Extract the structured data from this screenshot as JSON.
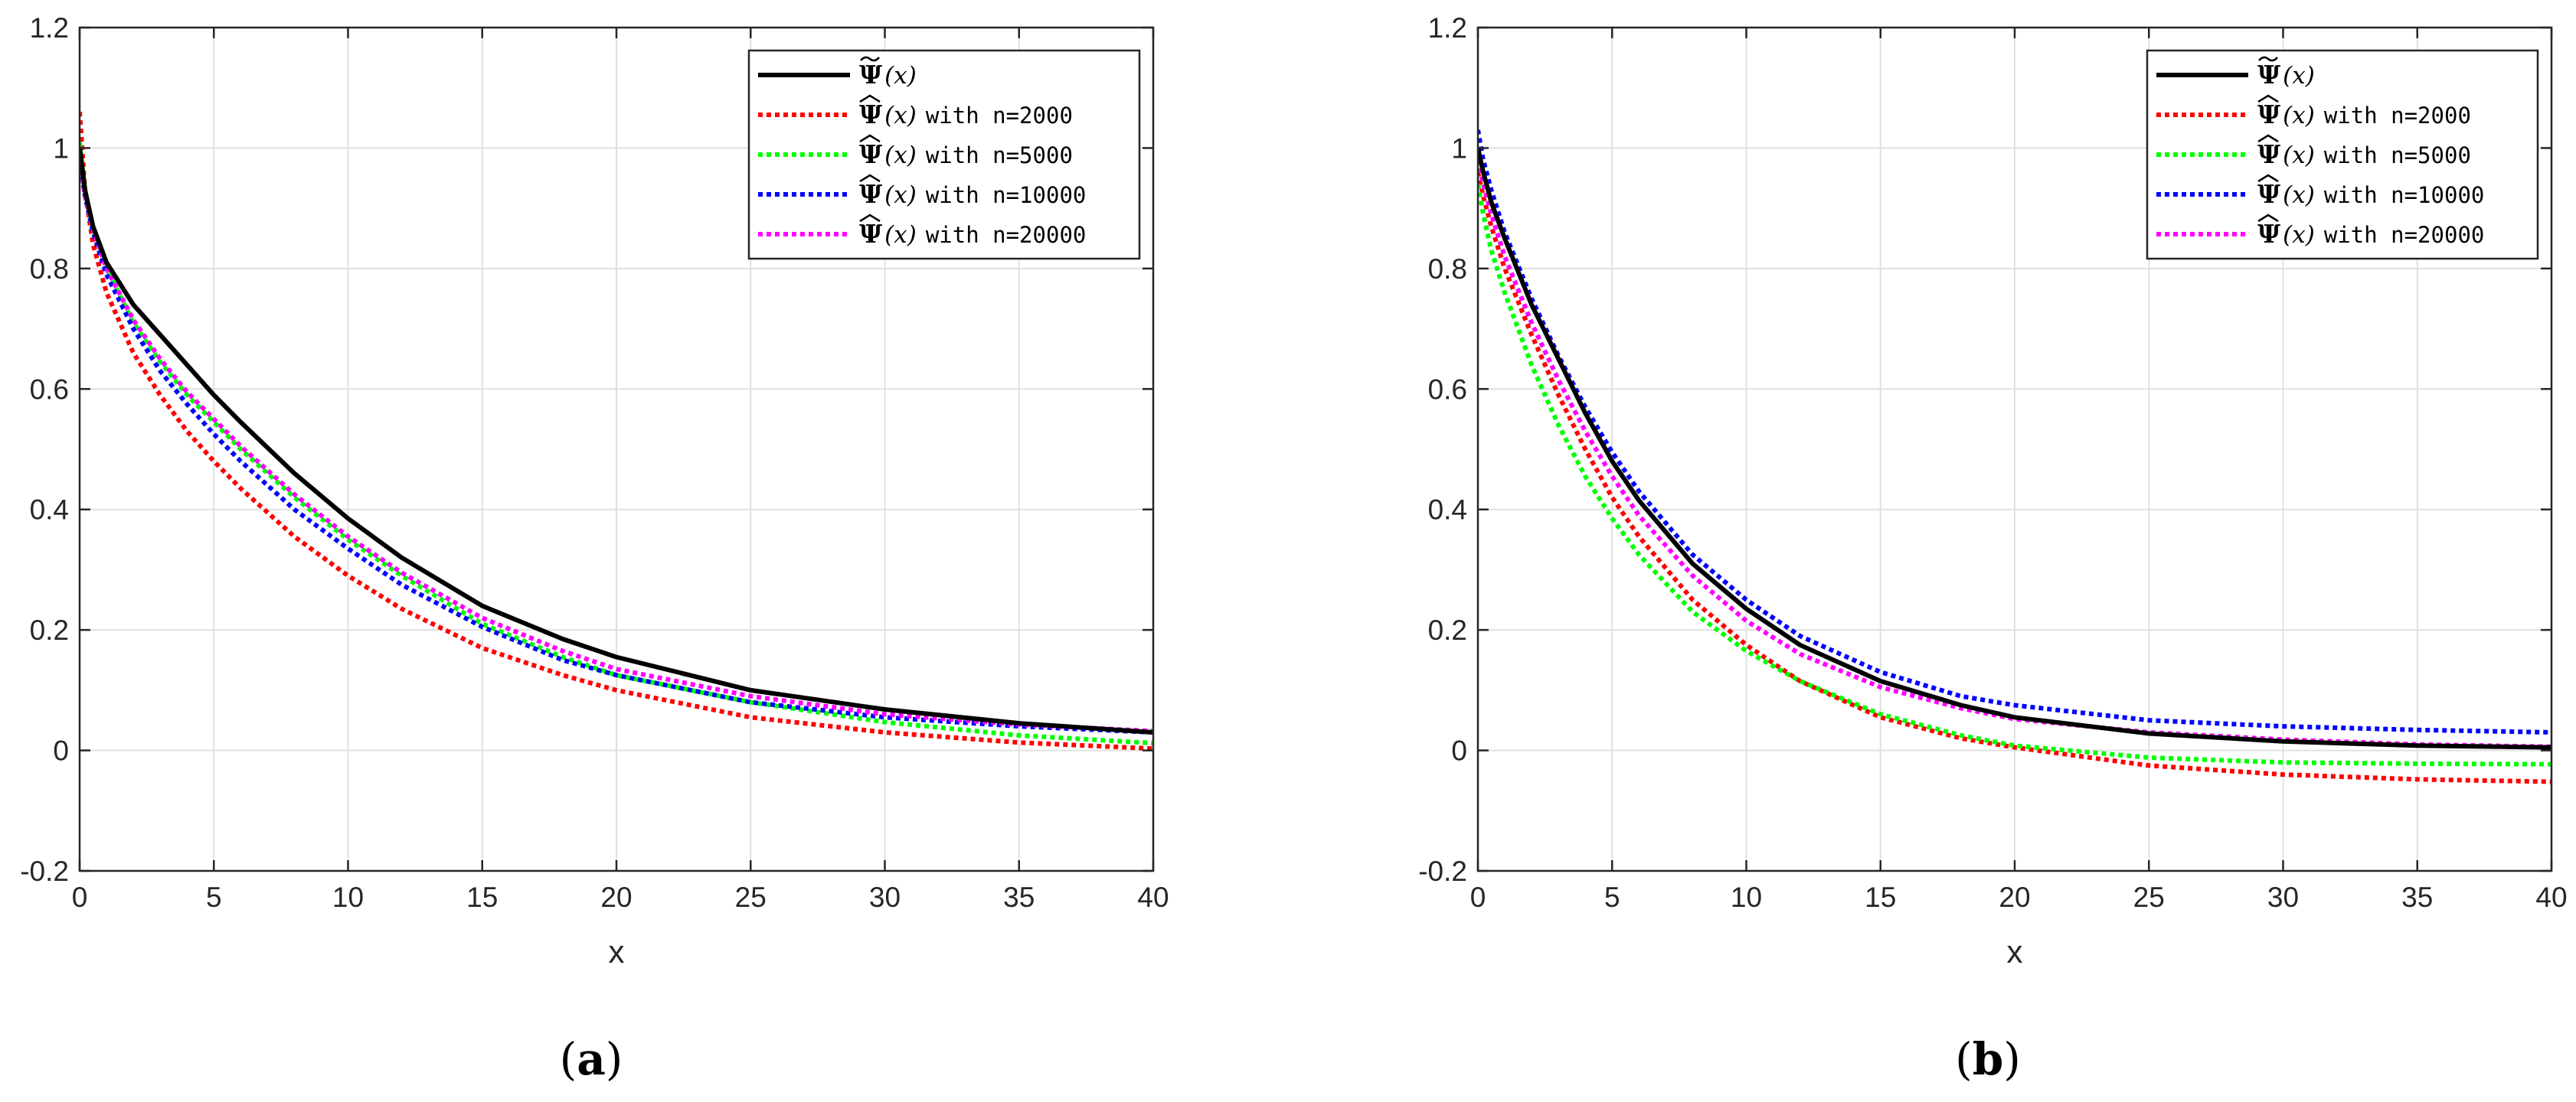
{
  "panel_labels": [
    {
      "open": "(",
      "letter": "a",
      "close": ")"
    },
    {
      "open": "(",
      "letter": "b",
      "close": ")"
    }
  ],
  "chart_data": [
    {
      "type": "line",
      "panel": "a",
      "xlabel": "x",
      "ylabel": "",
      "xlim": [
        0,
        40
      ],
      "ylim": [
        -0.2,
        1.2
      ],
      "xticks": [
        0,
        5,
        10,
        15,
        20,
        25,
        30,
        35,
        40
      ],
      "yticks": [
        -0.2,
        0,
        0.2,
        0.4,
        0.6,
        0.8,
        1,
        1.2
      ],
      "xtick_labels": [
        "0",
        "5",
        "10",
        "15",
        "20",
        "25",
        "30",
        "35",
        "40"
      ],
      "ytick_labels": [
        "-0.2",
        "0",
        "0.2",
        "0.4",
        "0.6",
        "0.8",
        "1",
        "1.2"
      ],
      "grid": true,
      "legend_position": "top-right",
      "x": [
        0,
        0.2,
        0.5,
        1,
        2,
        3,
        4,
        5,
        6,
        8,
        10,
        12,
        15,
        18,
        20,
        25,
        30,
        35,
        40
      ],
      "series": [
        {
          "name": "Ψ̃(x)",
          "symbol": "Ψ",
          "accent": "tilde",
          "suffix": "",
          "color": "#000000",
          "style": "solid",
          "values": [
            1.0,
            0.93,
            0.87,
            0.81,
            0.74,
            0.69,
            0.64,
            0.59,
            0.545,
            0.46,
            0.385,
            0.32,
            0.24,
            0.185,
            0.155,
            0.1,
            0.068,
            0.045,
            0.03
          ]
        },
        {
          "name": "Ψ̂(x) with n=2000",
          "symbol": "Ψ",
          "accent": "hat",
          "suffix": "with n=2000",
          "color": "#ff0000",
          "style": "dotted",
          "values": [
            1.06,
            0.93,
            0.84,
            0.76,
            0.66,
            0.59,
            0.53,
            0.48,
            0.435,
            0.355,
            0.29,
            0.235,
            0.17,
            0.125,
            0.1,
            0.055,
            0.03,
            0.013,
            0.003
          ]
        },
        {
          "name": "Ψ̂(x) with n=5000",
          "symbol": "Ψ",
          "accent": "hat",
          "suffix": "with n=5000",
          "color": "#00ff00",
          "style": "dotted",
          "values": [
            1.01,
            0.93,
            0.865,
            0.8,
            0.71,
            0.645,
            0.59,
            0.545,
            0.5,
            0.42,
            0.35,
            0.29,
            0.21,
            0.155,
            0.125,
            0.08,
            0.047,
            0.025,
            0.012
          ]
        },
        {
          "name": "Ψ̂(x) with n=10000",
          "symbol": "Ψ",
          "accent": "hat",
          "suffix": "with n=10000",
          "color": "#0000ff",
          "style": "dotted",
          "values": [
            0.98,
            0.92,
            0.86,
            0.79,
            0.7,
            0.63,
            0.575,
            0.525,
            0.48,
            0.4,
            0.335,
            0.275,
            0.205,
            0.15,
            0.125,
            0.08,
            0.055,
            0.04,
            0.03
          ]
        },
        {
          "name": "Ψ̂(x) with n=20000",
          "symbol": "Ψ",
          "accent": "hat",
          "suffix": "with n=20000",
          "color": "#ff00ff",
          "style": "dotted",
          "values": [
            0.99,
            0.92,
            0.865,
            0.8,
            0.715,
            0.65,
            0.595,
            0.55,
            0.505,
            0.425,
            0.355,
            0.295,
            0.22,
            0.165,
            0.135,
            0.09,
            0.06,
            0.043,
            0.032
          ]
        }
      ]
    },
    {
      "type": "line",
      "panel": "b",
      "xlabel": "x",
      "ylabel": "",
      "xlim": [
        0,
        40
      ],
      "ylim": [
        -0.2,
        1.2
      ],
      "xticks": [
        0,
        5,
        10,
        15,
        20,
        25,
        30,
        35,
        40
      ],
      "yticks": [
        -0.2,
        0,
        0.2,
        0.4,
        0.6,
        0.8,
        1,
        1.2
      ],
      "xtick_labels": [
        "0",
        "5",
        "10",
        "15",
        "20",
        "25",
        "30",
        "35",
        "40"
      ],
      "ytick_labels": [
        "-0.2",
        "0",
        "0.2",
        "0.4",
        "0.6",
        "0.8",
        "1",
        "1.2"
      ],
      "grid": true,
      "legend_position": "top-right",
      "x": [
        0,
        0.2,
        0.5,
        1,
        2,
        3,
        4,
        5,
        6,
        8,
        10,
        12,
        15,
        18,
        20,
        25,
        30,
        35,
        40
      ],
      "series": [
        {
          "name": "Ψ̃(x)",
          "symbol": "Ψ",
          "accent": "tilde",
          "suffix": "",
          "color": "#000000",
          "style": "solid",
          "values": [
            1.0,
            0.96,
            0.91,
            0.85,
            0.74,
            0.65,
            0.56,
            0.48,
            0.415,
            0.31,
            0.235,
            0.175,
            0.115,
            0.075,
            0.055,
            0.028,
            0.015,
            0.008,
            0.005
          ]
        },
        {
          "name": "Ψ̂(x) with n=2000",
          "symbol": "Ψ",
          "accent": "hat",
          "suffix": "with n=2000",
          "color": "#ff0000",
          "style": "dotted",
          "values": [
            0.96,
            0.92,
            0.87,
            0.8,
            0.69,
            0.59,
            0.5,
            0.42,
            0.355,
            0.25,
            0.175,
            0.115,
            0.055,
            0.02,
            0.005,
            -0.025,
            -0.04,
            -0.048,
            -0.052
          ]
        },
        {
          "name": "Ψ̂(x) with n=5000",
          "symbol": "Ψ",
          "accent": "hat",
          "suffix": "with n=5000",
          "color": "#00ff00",
          "style": "dotted",
          "values": [
            0.94,
            0.89,
            0.83,
            0.76,
            0.64,
            0.54,
            0.455,
            0.385,
            0.325,
            0.23,
            0.165,
            0.115,
            0.06,
            0.025,
            0.008,
            -0.012,
            -0.02,
            -0.022,
            -0.023
          ]
        },
        {
          "name": "Ψ̂(x) with n=10000",
          "symbol": "Ψ",
          "accent": "hat",
          "suffix": "with n=10000",
          "color": "#0000ff",
          "style": "dotted",
          "values": [
            1.03,
            0.98,
            0.93,
            0.86,
            0.75,
            0.655,
            0.57,
            0.495,
            0.43,
            0.325,
            0.25,
            0.19,
            0.13,
            0.09,
            0.075,
            0.05,
            0.04,
            0.034,
            0.03
          ]
        },
        {
          "name": "Ψ̂(x) with n=20000",
          "symbol": "Ψ",
          "accent": "hat",
          "suffix": "with n=20000",
          "color": "#ff00ff",
          "style": "dotted",
          "values": [
            0.98,
            0.94,
            0.89,
            0.82,
            0.71,
            0.615,
            0.53,
            0.455,
            0.39,
            0.29,
            0.215,
            0.16,
            0.105,
            0.07,
            0.052,
            0.03,
            0.018,
            0.01,
            0.006
          ]
        }
      ]
    }
  ]
}
